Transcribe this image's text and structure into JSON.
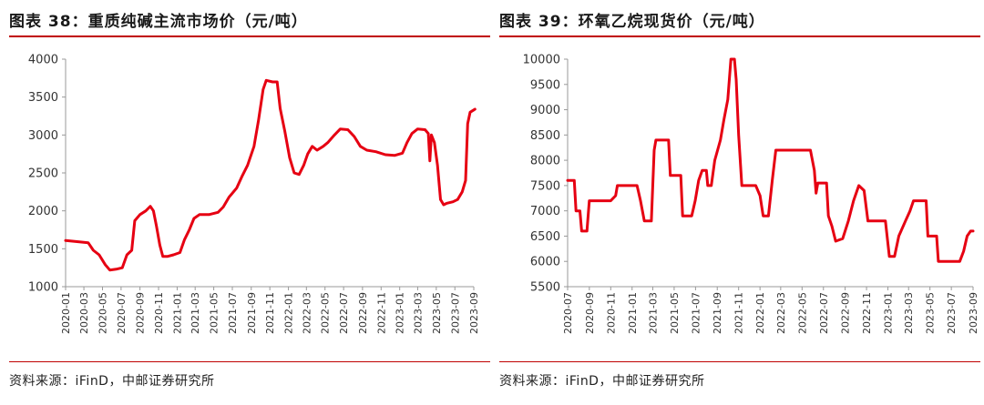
{
  "charts": [
    {
      "title": "图表 38：重质纯碱主流市场价（元/吨）",
      "source": "资料来源：iFinD，中邮证券研究所"
    },
    {
      "title": "图表 39：环氧乙烷现货价（元/吨）",
      "source": "资料来源：iFinD，中邮证券研究所"
    }
  ],
  "colors": {
    "line": "#e60012",
    "accent_rule": "#c00000"
  },
  "chart_data": [
    {
      "type": "line",
      "title": "图表 38：重质纯碱主流市场价（元/吨）",
      "ylim": [
        1000,
        4000
      ],
      "yticks": [
        1000,
        1500,
        2000,
        2500,
        3000,
        3500,
        4000
      ],
      "xlim": [
        "2020-01",
        "2023-09"
      ],
      "xticks": [
        "2020-01",
        "2020-03",
        "2020-05",
        "2020-07",
        "2020-09",
        "2020-11",
        "2021-01",
        "2021-03",
        "2021-05",
        "2021-07",
        "2021-09",
        "2021-11",
        "2022-01",
        "2022-03",
        "2022-05",
        "2022-07",
        "2022-09",
        "2022-11",
        "2023-01",
        "2023-03",
        "2023-05",
        "2023-07",
        "2023-09"
      ],
      "series": [
        {
          "color": "#e60012",
          "points": [
            [
              "2020-01-01",
              1610
            ],
            [
              "2020-02-15",
              1590
            ],
            [
              "2020-03-15",
              1580
            ],
            [
              "2020-04-01",
              1480
            ],
            [
              "2020-04-20",
              1420
            ],
            [
              "2020-05-10",
              1290
            ],
            [
              "2020-05-25",
              1220
            ],
            [
              "2020-06-15",
              1230
            ],
            [
              "2020-07-05",
              1250
            ],
            [
              "2020-07-20",
              1420
            ],
            [
              "2020-08-05",
              1480
            ],
            [
              "2020-08-15",
              1870
            ],
            [
              "2020-09-01",
              1950
            ],
            [
              "2020-09-20",
              2000
            ],
            [
              "2020-10-05",
              2060
            ],
            [
              "2020-10-15",
              2000
            ],
            [
              "2020-10-25",
              1800
            ],
            [
              "2020-11-05",
              1550
            ],
            [
              "2020-11-15",
              1400
            ],
            [
              "2020-12-01",
              1400
            ],
            [
              "2020-12-20",
              1420
            ],
            [
              "2021-01-10",
              1450
            ],
            [
              "2021-01-25",
              1620
            ],
            [
              "2021-02-10",
              1750
            ],
            [
              "2021-02-25",
              1900
            ],
            [
              "2021-03-15",
              1950
            ],
            [
              "2021-04-15",
              1950
            ],
            [
              "2021-05-15",
              1980
            ],
            [
              "2021-06-01",
              2050
            ],
            [
              "2021-06-20",
              2180
            ],
            [
              "2021-07-15",
              2300
            ],
            [
              "2021-08-01",
              2450
            ],
            [
              "2021-08-20",
              2600
            ],
            [
              "2021-09-10",
              2850
            ],
            [
              "2021-09-25",
              3200
            ],
            [
              "2021-10-10",
              3600
            ],
            [
              "2021-10-20",
              3720
            ],
            [
              "2021-11-10",
              3700
            ],
            [
              "2021-11-25",
              3700
            ],
            [
              "2021-12-05",
              3350
            ],
            [
              "2021-12-20",
              3050
            ],
            [
              "2022-01-05",
              2700
            ],
            [
              "2022-01-20",
              2500
            ],
            [
              "2022-02-05",
              2480
            ],
            [
              "2022-02-20",
              2600
            ],
            [
              "2022-03-05",
              2750
            ],
            [
              "2022-03-20",
              2850
            ],
            [
              "2022-04-05",
              2800
            ],
            [
              "2022-04-25",
              2850
            ],
            [
              "2022-05-10",
              2900
            ],
            [
              "2022-06-01",
              3000
            ],
            [
              "2022-06-20",
              3080
            ],
            [
              "2022-07-15",
              3070
            ],
            [
              "2022-08-05",
              2980
            ],
            [
              "2022-08-25",
              2850
            ],
            [
              "2022-09-15",
              2800
            ],
            [
              "2022-10-15",
              2780
            ],
            [
              "2022-11-15",
              2740
            ],
            [
              "2022-12-15",
              2730
            ],
            [
              "2023-01-10",
              2760
            ],
            [
              "2023-01-25",
              2900
            ],
            [
              "2023-02-10",
              3020
            ],
            [
              "2023-03-01",
              3080
            ],
            [
              "2023-03-25",
              3070
            ],
            [
              "2023-04-05",
              3020
            ],
            [
              "2023-04-10",
              2660
            ],
            [
              "2023-04-15",
              3000
            ],
            [
              "2023-04-25",
              2900
            ],
            [
              "2023-05-05",
              2600
            ],
            [
              "2023-05-15",
              2150
            ],
            [
              "2023-05-25",
              2080
            ],
            [
              "2023-06-05",
              2100
            ],
            [
              "2023-06-25",
              2120
            ],
            [
              "2023-07-10",
              2150
            ],
            [
              "2023-07-25",
              2250
            ],
            [
              "2023-08-05",
              2400
            ],
            [
              "2023-08-12",
              3150
            ],
            [
              "2023-08-20",
              3300
            ],
            [
              "2023-09-01",
              3330
            ],
            [
              "2023-09-05",
              3340
            ]
          ]
        }
      ]
    },
    {
      "type": "line",
      "title": "图表 39：环氧乙烷现货价（元/吨）",
      "ylim": [
        5500,
        10000
      ],
      "yticks": [
        5500,
        6000,
        6500,
        7000,
        7500,
        8000,
        8500,
        9000,
        9500,
        10000
      ],
      "xlim": [
        "2020-07",
        "2023-09"
      ],
      "xticks": [
        "2020-07",
        "2020-09",
        "2020-11",
        "2021-01",
        "2021-03",
        "2021-05",
        "2021-07",
        "2021-09",
        "2021-11",
        "2022-01",
        "2022-03",
        "2022-05",
        "2022-07",
        "2022-09",
        "2022-11",
        "2023-01",
        "2023-03",
        "2023-05",
        "2023-07",
        "2023-09"
      ],
      "series": [
        {
          "color": "#e60012",
          "points": [
            [
              "2020-07-01",
              7600
            ],
            [
              "2020-07-20",
              7600
            ],
            [
              "2020-07-25",
              7000
            ],
            [
              "2020-08-05",
              7000
            ],
            [
              "2020-08-10",
              6600
            ],
            [
              "2020-08-25",
              6600
            ],
            [
              "2020-09-01",
              7200
            ],
            [
              "2020-10-01",
              7200
            ],
            [
              "2020-11-01",
              7200
            ],
            [
              "2020-11-15",
              7300
            ],
            [
              "2020-11-20",
              7500
            ],
            [
              "2021-01-15",
              7500
            ],
            [
              "2021-01-25",
              7200
            ],
            [
              "2021-02-05",
              6800
            ],
            [
              "2021-02-25",
              6800
            ],
            [
              "2021-03-05",
              8200
            ],
            [
              "2021-03-10",
              8400
            ],
            [
              "2021-04-15",
              8400
            ],
            [
              "2021-04-20",
              7700
            ],
            [
              "2021-05-20",
              7700
            ],
            [
              "2021-05-25",
              6900
            ],
            [
              "2021-06-20",
              6900
            ],
            [
              "2021-06-30",
              7200
            ],
            [
              "2021-07-10",
              7600
            ],
            [
              "2021-07-20",
              7800
            ],
            [
              "2021-08-01",
              7800
            ],
            [
              "2021-08-05",
              7500
            ],
            [
              "2021-08-15",
              7500
            ],
            [
              "2021-08-25",
              8000
            ],
            [
              "2021-09-10",
              8400
            ],
            [
              "2021-09-20",
              8800
            ],
            [
              "2021-10-01",
              9200
            ],
            [
              "2021-10-10",
              10000
            ],
            [
              "2021-10-20",
              10000
            ],
            [
              "2021-10-25",
              9600
            ],
            [
              "2021-11-01",
              8500
            ],
            [
              "2021-11-10",
              7500
            ],
            [
              "2021-12-20",
              7500
            ],
            [
              "2022-01-01",
              7300
            ],
            [
              "2022-01-10",
              6900
            ],
            [
              "2022-01-25",
              6900
            ],
            [
              "2022-02-05",
              7600
            ],
            [
              "2022-02-15",
              8200
            ],
            [
              "2022-05-15",
              8200
            ],
            [
              "2022-05-25",
              8200
            ],
            [
              "2022-06-05",
              7800
            ],
            [
              "2022-06-10",
              7350
            ],
            [
              "2022-06-15",
              7550
            ],
            [
              "2022-07-10",
              7550
            ],
            [
              "2022-07-15",
              6900
            ],
            [
              "2022-07-25",
              6700
            ],
            [
              "2022-08-05",
              6400
            ],
            [
              "2022-08-25",
              6450
            ],
            [
              "2022-09-10",
              6800
            ],
            [
              "2022-09-25",
              7200
            ],
            [
              "2022-10-10",
              7500
            ],
            [
              "2022-10-25",
              7400
            ],
            [
              "2022-11-05",
              6800
            ],
            [
              "2022-12-10",
              6800
            ],
            [
              "2022-12-25",
              6800
            ],
            [
              "2023-01-05",
              6100
            ],
            [
              "2023-01-20",
              6100
            ],
            [
              "2023-02-01",
              6500
            ],
            [
              "2023-02-20",
              6800
            ],
            [
              "2023-03-05",
              7000
            ],
            [
              "2023-03-15",
              7200
            ],
            [
              "2023-04-20",
              7200
            ],
            [
              "2023-04-25",
              6500
            ],
            [
              "2023-05-20",
              6500
            ],
            [
              "2023-05-25",
              6000
            ],
            [
              "2023-07-25",
              6000
            ],
            [
              "2023-08-05",
              6200
            ],
            [
              "2023-08-15",
              6500
            ],
            [
              "2023-08-25",
              6600
            ],
            [
              "2023-09-01",
              6600
            ]
          ]
        }
      ]
    }
  ]
}
